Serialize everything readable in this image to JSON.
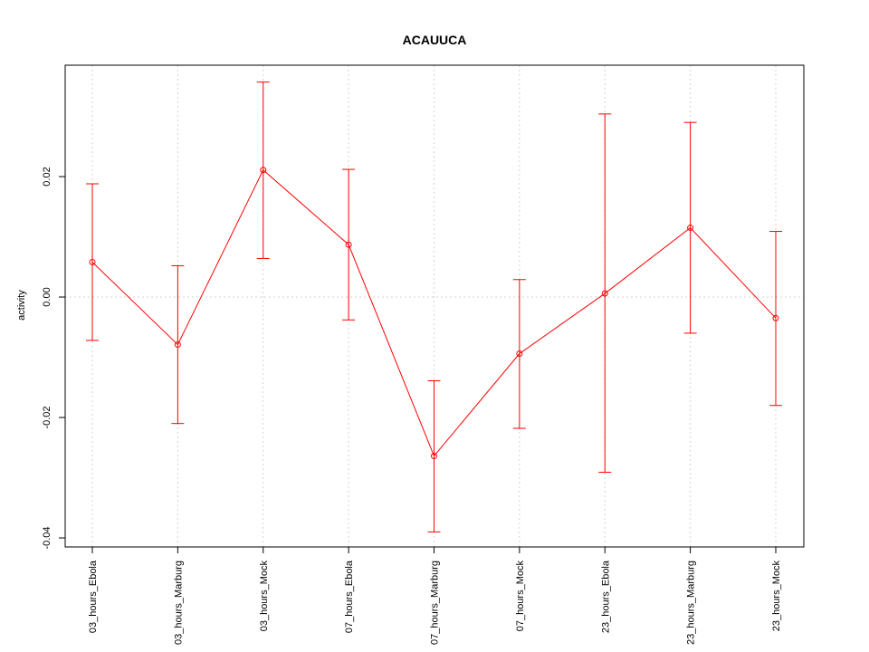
{
  "chart_data": {
    "type": "line",
    "title": "ACAUUCA",
    "xlabel": "",
    "ylabel": "activity",
    "categories": [
      "03_hours_Ebola",
      "03_hours_Marburg",
      "03_hours_Mock",
      "07_hours_Ebola",
      "07_hours_Marburg",
      "07_hours_Mock",
      "23_hours_Ebola",
      "23_hours_Marburg",
      "23_hours_Mock"
    ],
    "series": [
      {
        "values": [
          0.0058,
          -0.0079,
          0.0211,
          0.0087,
          -0.0264,
          -0.0094,
          0.0006,
          0.0115,
          -0.0035
        ],
        "lower": [
          -0.0072,
          -0.021,
          0.0064,
          -0.0038,
          -0.039,
          -0.0218,
          -0.0291,
          -0.006,
          -0.018
        ],
        "upper": [
          0.0188,
          0.0052,
          0.0357,
          0.0212,
          -0.0139,
          0.0029,
          0.0304,
          0.029,
          0.0109
        ]
      }
    ],
    "ylim": [
      -0.0415,
      0.0385
    ],
    "yticks": [
      -0.04,
      -0.02,
      0.0,
      0.02
    ],
    "ytick_labels": [
      "-0.04",
      "-0.02",
      "0.00",
      "0.02"
    ],
    "grid": true,
    "line_color": "#ff0000",
    "grid_color": "#d3d3d3"
  }
}
